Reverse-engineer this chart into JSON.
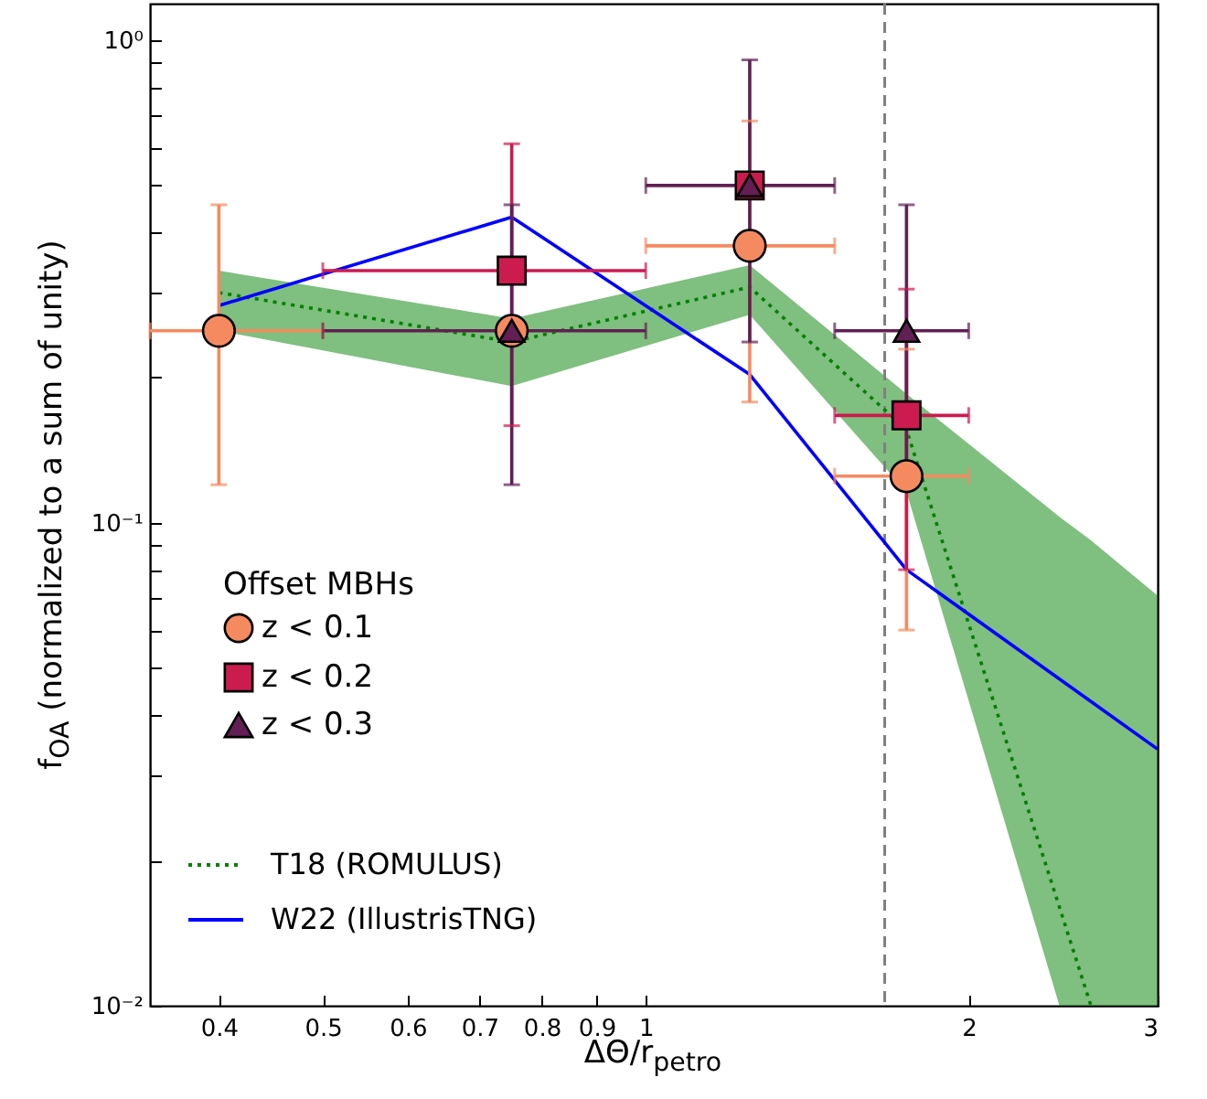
{
  "chart_data": {
    "type": "scatter",
    "xlabel": "ΔΘ/r$_{petro}$",
    "ylabel": "f$_{OA}$ (normalized to a sum of unity)",
    "legend_title": "Offset MBHs",
    "log": "xy",
    "grid": false,
    "legend": "bottom left",
    "xlim": [
      0.345,
      3
    ],
    "xticks": [
      0.4,
      0.5,
      0.6,
      0.7,
      0.8,
      0.9,
      1,
      2,
      3
    ],
    "ylim": [
      0.01,
      1.19
    ],
    "yticks": [
      {
        "value": 0.01,
        "label": "10⁻²"
      },
      {
        "value": 0.02,
        "label": null
      },
      {
        "value": 0.03,
        "label": null
      },
      {
        "value": 0.04,
        "label": null
      },
      {
        "value": 0.05,
        "label": null
      },
      {
        "value": 0.06,
        "label": null
      },
      {
        "value": 0.07,
        "label": null
      },
      {
        "value": 0.08,
        "label": null
      },
      {
        "value": 0.09,
        "label": null
      },
      {
        "value": 0.1,
        "label": "10⁻¹"
      },
      {
        "value": 0.2,
        "label": null
      },
      {
        "value": 0.3,
        "label": null
      },
      {
        "value": 0.4,
        "label": null
      },
      {
        "value": 0.5,
        "label": null
      },
      {
        "value": 0.6,
        "label": null
      },
      {
        "value": 0.7,
        "label": null
      },
      {
        "value": 0.8,
        "label": null
      },
      {
        "value": 0.9,
        "label": null
      },
      {
        "value": 1,
        "label": "10⁰"
      }
    ],
    "ref_lines": [
      {
        "axis": "x",
        "value": 1.67,
        "color": "#808080",
        "line_style": "dashed"
      }
    ],
    "series": [
      {
        "name": "T18 (ROMULUS)",
        "type": "line",
        "color": "#008000",
        "line_style": "dotted",
        "x": [
          0.4,
          0.75,
          1.25,
          1.75,
          2.43,
          2.6,
          3
        ],
        "values": [
          0.3,
          0.237,
          0.308,
          0.156,
          0.016,
          0.01,
          null
        ],
        "lower": [
          0.25,
          0.192,
          0.27,
          0.116,
          0.01,
          0.01,
          0.01
        ],
        "upper": [
          0.333,
          0.265,
          0.342,
          0.185,
          0.103,
          0.092,
          0.0707
        ]
      },
      {
        "name": "W22 (IllustrisTNG)",
        "type": "line",
        "color": "#0000ff",
        "line_style": "solid",
        "x": [
          0.4,
          0.75,
          1.25,
          1.75,
          3
        ],
        "values": [
          0.282,
          0.43,
          0.203,
          0.08,
          0.034
        ]
      },
      {
        "name": "z < 0.1",
        "color": "#f58a60",
        "marker": "circle",
        "x": [
          0.4,
          0.75,
          1.25,
          1.75
        ],
        "values": [
          0.25,
          0.25,
          0.375,
          0.125
        ],
        "errors": [
          [
            0.12,
            0.456
          ],
          null,
          [
            0.178,
            0.68
          ],
          [
            0.06,
            0.229
          ]
        ],
        "xerrors": [
          [
            0.345,
            0.5
          ],
          null,
          [
            1,
            1.5
          ],
          [
            1.5,
            2
          ]
        ]
      },
      {
        "name": "z < 0.2",
        "color": "#cb1b4f",
        "marker": "square",
        "x": [
          0.75,
          1.25,
          1.75
        ],
        "values": [
          0.333,
          0.5,
          0.167
        ],
        "errors": [
          [
            0.159,
            0.61
          ],
          null,
          [
            0.08,
            0.305
          ]
        ],
        "xerrors": [
          [
            0.5,
            1
          ],
          null,
          [
            1.5,
            2
          ]
        ]
      },
      {
        "name": "z < 0.3",
        "color": "#611f53",
        "marker": "triangle",
        "x": [
          0.75,
          1.25,
          1.75
        ],
        "values": [
          0.25,
          0.5,
          0.25
        ],
        "errors": [
          [
            0.12,
            0.456
          ],
          [
            0.237,
            0.91
          ],
          [
            0.12,
            0.456
          ]
        ],
        "xerrors": [
          [
            0.5,
            1
          ],
          [
            1,
            1.5
          ],
          [
            1.5,
            2
          ]
        ]
      }
    ]
  }
}
